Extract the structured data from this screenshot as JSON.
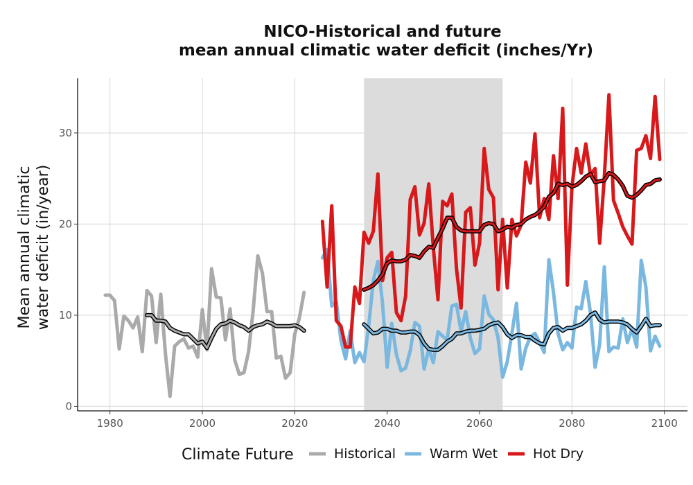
{
  "chart_data": {
    "type": "line",
    "title": "NICO-Historical and future",
    "subtitle": "mean annual climatic water deficit (inches/Yr)",
    "ylabel_line1": "Mean annual climatic",
    "ylabel_line2": "water deficit (in/year)",
    "xlabel": "",
    "xlim": [
      1973,
      2105
    ],
    "ylim": [
      -0.5,
      36
    ],
    "x_ticks": [
      1980,
      2000,
      2020,
      2040,
      2060,
      2080,
      2100
    ],
    "y_ticks": [
      0,
      10,
      20,
      30
    ],
    "grid": true,
    "shaded_period": [
      2035,
      2065
    ],
    "legend": {
      "title": "Climate Future",
      "position": "bottom",
      "entries": [
        "Historical",
        "Warm Wet",
        "Hot Dry"
      ]
    },
    "series": [
      {
        "name": "Historical",
        "color": "#aaaaaa",
        "x": [
          1979,
          1980,
          1981,
          1982,
          1983,
          1984,
          1985,
          1986,
          1987,
          1988,
          1989,
          1990,
          1991,
          1992,
          1993,
          1994,
          1995,
          1996,
          1997,
          1998,
          1999,
          2000,
          2001,
          2002,
          2003,
          2004,
          2005,
          2006,
          2007,
          2008,
          2009,
          2010,
          2011,
          2012,
          2013,
          2014,
          2015,
          2016,
          2017,
          2018,
          2019,
          2020,
          2021,
          2022
        ],
        "values": [
          12.2,
          12.2,
          11.6,
          6.3,
          9.9,
          9.4,
          8.6,
          9.8,
          6.0,
          12.7,
          12.1,
          7.0,
          12.3,
          5.8,
          1.1,
          6.6,
          7.1,
          7.4,
          6.4,
          6.6,
          5.4,
          10.6,
          6.2,
          15.1,
          12.0,
          11.9,
          7.3,
          10.7,
          5.1,
          3.5,
          3.7,
          6.0,
          10.5,
          16.5,
          14.6,
          10.4,
          10.4,
          5.3,
          5.5,
          3.1,
          3.7,
          7.9,
          9.7,
          12.5
        ],
        "smooth_x": [
          1988,
          1989,
          1990,
          1991,
          1992,
          1993,
          1994,
          1995,
          1996,
          1997,
          1998,
          1999,
          2000,
          2001,
          2002,
          2003,
          2004,
          2005,
          2006,
          2007,
          2008,
          2009,
          2010,
          2011,
          2012,
          2013,
          2014,
          2015,
          2016,
          2017,
          2018,
          2019,
          2020,
          2021,
          2022
        ],
        "smooth": [
          10.0,
          10.0,
          9.4,
          9.4,
          9.3,
          8.6,
          8.3,
          8.1,
          7.9,
          7.9,
          7.4,
          6.9,
          7.1,
          6.4,
          7.5,
          8.5,
          9.0,
          9.1,
          9.4,
          9.2,
          8.9,
          8.7,
          8.3,
          8.7,
          8.9,
          9.0,
          9.3,
          9.1,
          8.8,
          8.8,
          8.8,
          8.8,
          8.9,
          8.7,
          8.3
        ]
      },
      {
        "name": "Warm Wet",
        "color": "#7bb8e0",
        "x": [
          2026,
          2027,
          2028,
          2029,
          2030,
          2031,
          2032,
          2033,
          2034,
          2035,
          2036,
          2037,
          2038,
          2039,
          2040,
          2041,
          2042,
          2043,
          2044,
          2045,
          2046,
          2047,
          2048,
          2049,
          2050,
          2051,
          2052,
          2053,
          2054,
          2055,
          2056,
          2057,
          2058,
          2059,
          2060,
          2061,
          2062,
          2063,
          2064,
          2065,
          2066,
          2067,
          2068,
          2069,
          2070,
          2071,
          2072,
          2073,
          2074,
          2075,
          2076,
          2077,
          2078,
          2079,
          2080,
          2081,
          2082,
          2083,
          2084,
          2085,
          2086,
          2087,
          2088,
          2089,
          2090,
          2091,
          2092,
          2093,
          2094,
          2095,
          2096,
          2097,
          2098,
          2099
        ],
        "values": [
          16.3,
          17.2,
          11.0,
          11.5,
          7.2,
          5.2,
          8.3,
          4.8,
          5.9,
          4.9,
          8.8,
          13.8,
          15.9,
          11.3,
          4.3,
          9.1,
          5.7,
          3.9,
          4.2,
          6.1,
          9.2,
          8.8,
          4.1,
          6.3,
          4.8,
          8.2,
          7.7,
          7.3,
          11.0,
          11.2,
          8.2,
          10.4,
          7.5,
          5.8,
          6.3,
          12.1,
          10.1,
          9.5,
          7.5,
          3.2,
          4.9,
          8.0,
          11.3,
          4.1,
          6.4,
          7.6,
          8.0,
          7.0,
          5.9,
          16.1,
          12.5,
          8.0,
          6.2,
          7.0,
          6.4,
          10.9,
          10.7,
          13.7,
          10.3,
          4.3,
          6.8,
          15.3,
          6.0,
          6.5,
          6.4,
          9.6,
          7.0,
          8.5,
          6.5,
          16.0,
          13.1,
          6.1,
          7.7,
          6.6
        ],
        "smooth_x": [
          2035,
          2036,
          2037,
          2038,
          2039,
          2040,
          2041,
          2042,
          2043,
          2044,
          2045,
          2046,
          2047,
          2048,
          2049,
          2050,
          2051,
          2052,
          2053,
          2054,
          2055,
          2056,
          2057,
          2058,
          2059,
          2060,
          2061,
          2062,
          2063,
          2064,
          2065,
          2066,
          2067,
          2068,
          2069,
          2070,
          2071,
          2072,
          2073,
          2074,
          2075,
          2076,
          2077,
          2078,
          2079,
          2080,
          2081,
          2082,
          2083,
          2084,
          2085,
          2086,
          2087,
          2088,
          2089,
          2090,
          2091,
          2092,
          2093,
          2094,
          2095,
          2096,
          2097,
          2098,
          2099
        ],
        "smooth": [
          9.0,
          8.5,
          8.0,
          8.1,
          8.5,
          8.5,
          8.3,
          8.3,
          8.1,
          8.1,
          8.2,
          8.2,
          7.8,
          6.9,
          6.3,
          6.2,
          6.2,
          6.6,
          7.1,
          7.4,
          8.0,
          8.0,
          8.2,
          8.3,
          8.3,
          8.4,
          8.5,
          8.9,
          9.1,
          9.2,
          8.7,
          7.9,
          7.5,
          7.8,
          7.8,
          7.6,
          7.6,
          7.2,
          6.9,
          6.8,
          8.0,
          8.6,
          8.7,
          8.3,
          8.6,
          8.6,
          8.8,
          9.0,
          9.4,
          10.0,
          10.3,
          9.5,
          9.2,
          9.3,
          9.3,
          9.3,
          9.2,
          9.0,
          8.5,
          8.1,
          8.8,
          9.6,
          8.8,
          8.9,
          8.9
        ]
      },
      {
        "name": "Hot Dry",
        "color": "#d7191c",
        "x": [
          2026,
          2027,
          2028,
          2029,
          2030,
          2031,
          2032,
          2033,
          2034,
          2035,
          2036,
          2037,
          2038,
          2039,
          2040,
          2041,
          2042,
          2043,
          2044,
          2045,
          2046,
          2047,
          2048,
          2049,
          2050,
          2051,
          2052,
          2053,
          2054,
          2055,
          2056,
          2057,
          2058,
          2059,
          2060,
          2061,
          2062,
          2063,
          2064,
          2065,
          2066,
          2067,
          2068,
          2069,
          2070,
          2071,
          2072,
          2073,
          2074,
          2075,
          2076,
          2077,
          2078,
          2079,
          2080,
          2081,
          2082,
          2083,
          2084,
          2085,
          2086,
          2087,
          2088,
          2089,
          2090,
          2091,
          2092,
          2093,
          2094,
          2095,
          2096,
          2097,
          2098,
          2099
        ],
        "values": [
          20.3,
          13.1,
          22.0,
          9.4,
          8.8,
          6.5,
          6.5,
          13.1,
          11.3,
          19.1,
          17.9,
          19.2,
          25.5,
          13.8,
          16.3,
          16.9,
          10.3,
          9.4,
          12.1,
          22.7,
          24.1,
          18.8,
          20.1,
          24.4,
          17.4,
          11.7,
          22.5,
          22.0,
          23.3,
          15.1,
          10.8,
          21.3,
          21.8,
          15.5,
          17.9,
          28.3,
          23.8,
          22.9,
          12.8,
          20.5,
          13.0,
          20.5,
          18.7,
          19.9,
          26.8,
          24.5,
          29.9,
          20.7,
          22.8,
          20.5,
          27.5,
          22.8,
          32.7,
          13.3,
          24.1,
          28.3,
          25.6,
          28.8,
          25.4,
          26.1,
          17.9,
          25.1,
          34.2,
          22.6,
          21.2,
          19.7,
          18.7,
          17.8,
          28.1,
          28.3,
          29.7,
          27.2,
          34.0,
          27.1
        ],
        "smooth_x": [
          2035,
          2036,
          2037,
          2038,
          2039,
          2040,
          2041,
          2042,
          2043,
          2044,
          2045,
          2046,
          2047,
          2048,
          2049,
          2050,
          2051,
          2052,
          2053,
          2054,
          2055,
          2056,
          2057,
          2058,
          2059,
          2060,
          2061,
          2062,
          2063,
          2064,
          2065,
          2066,
          2067,
          2068,
          2069,
          2070,
          2071,
          2072,
          2073,
          2074,
          2075,
          2076,
          2077,
          2078,
          2079,
          2080,
          2081,
          2082,
          2083,
          2084,
          2085,
          2086,
          2087,
          2088,
          2089,
          2090,
          2091,
          2092,
          2093,
          2094,
          2095,
          2096,
          2097,
          2098,
          2099
        ],
        "smooth": [
          12.8,
          13.0,
          13.3,
          13.8,
          14.5,
          15.7,
          16.0,
          15.9,
          15.9,
          16.1,
          16.6,
          16.5,
          16.3,
          17.0,
          17.5,
          17.4,
          18.5,
          19.5,
          20.7,
          20.7,
          19.7,
          19.3,
          19.2,
          19.2,
          19.2,
          19.2,
          19.9,
          20.1,
          20.0,
          19.2,
          19.4,
          19.7,
          19.6,
          19.9,
          20.0,
          20.5,
          20.8,
          21.0,
          21.4,
          21.9,
          23.0,
          23.4,
          24.4,
          24.3,
          24.4,
          24.1,
          24.3,
          24.7,
          25.2,
          25.5,
          24.6,
          24.7,
          24.8,
          25.6,
          25.4,
          24.9,
          24.2,
          23.1,
          22.9,
          23.2,
          23.7,
          24.3,
          24.4,
          24.8,
          24.9
        ]
      }
    ]
  }
}
